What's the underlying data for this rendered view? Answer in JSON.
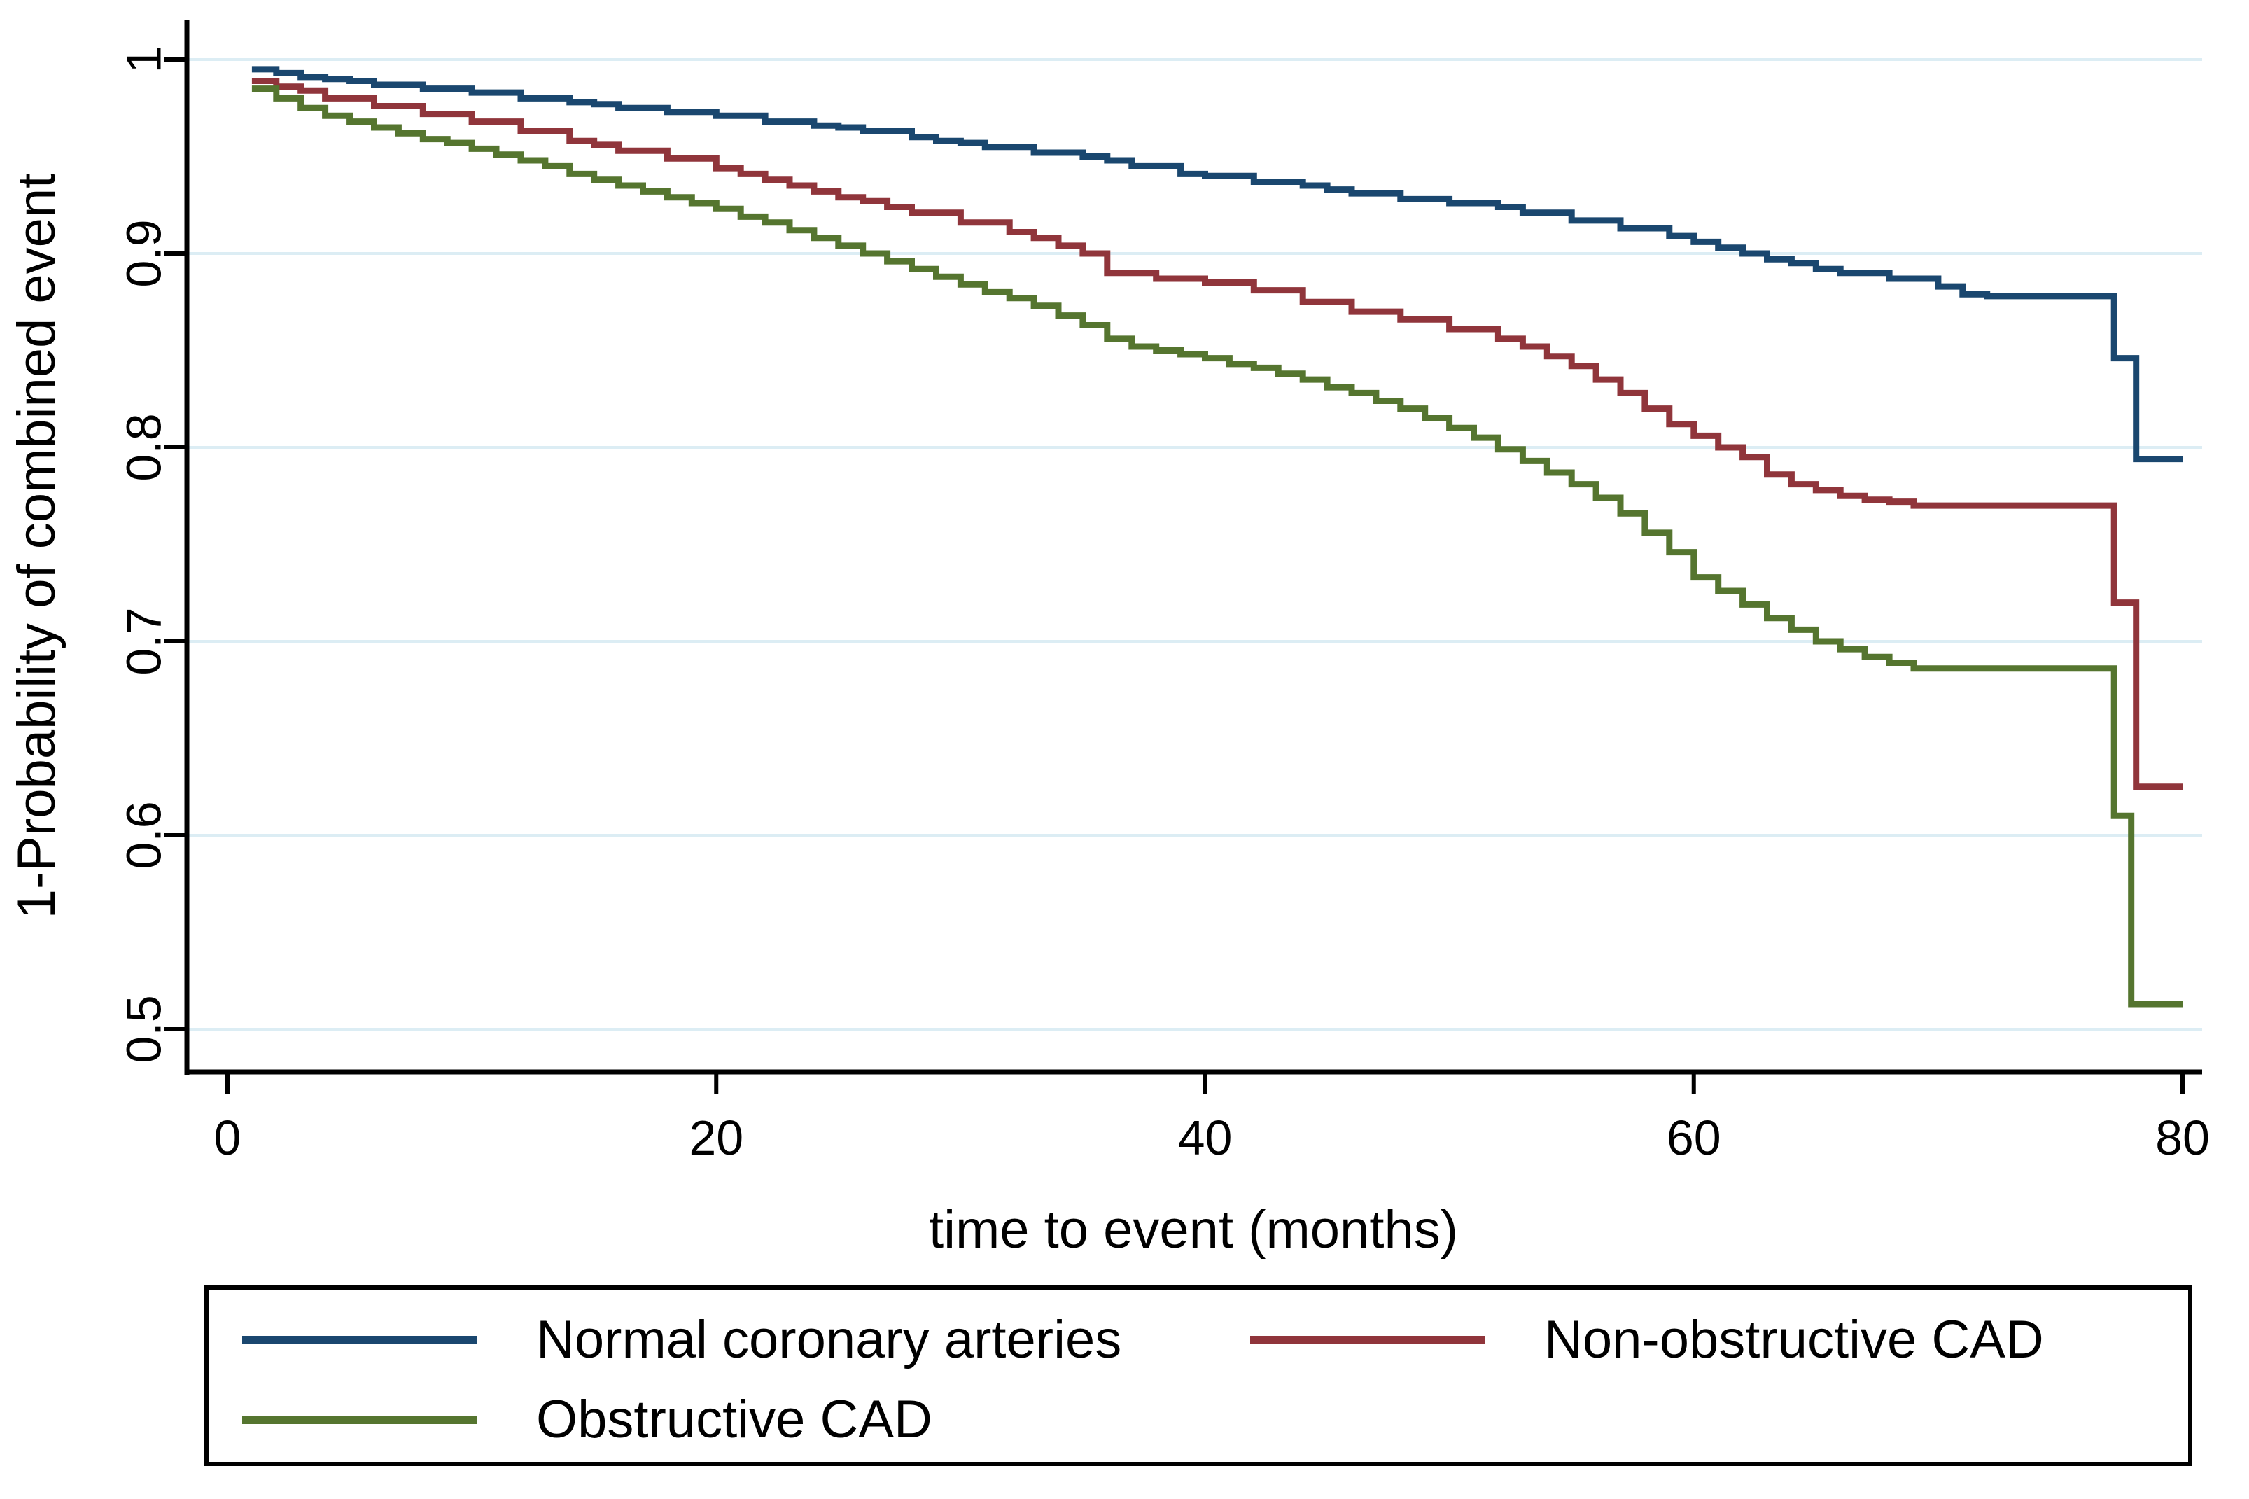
{
  "figure": {
    "background": "#ffffff",
    "grid_color": "#dcedf4",
    "axis_color": "#000000",
    "text_color": "#000000"
  },
  "chart_data": {
    "type": "line",
    "subtype": "kaplan-meier-step",
    "title": "",
    "xlabel": "time to event (months)",
    "ylabel": "1-Probability of combined event",
    "xlim": [
      0,
      80
    ],
    "ylim": [
      0.48,
      1.02
    ],
    "xticks": [
      0,
      20,
      40,
      60,
      80
    ],
    "xtick_labels": [
      "0",
      "20",
      "40",
      "60",
      "80"
    ],
    "yticks": [
      1,
      0.9,
      0.8,
      0.7,
      0.6,
      0.5
    ],
    "ytick_labels": [
      "1",
      "0.9",
      "0.8",
      "0.7",
      "0.6",
      "0.5"
    ],
    "grid": "horizontal-only",
    "legend_position": "bottom-box",
    "series": [
      {
        "name": "Normal coronary arteries",
        "color": "#1a476f",
        "step": true,
        "points": [
          [
            1,
            0.995
          ],
          [
            2,
            0.993
          ],
          [
            3,
            0.991
          ],
          [
            4,
            0.99
          ],
          [
            5,
            0.989
          ],
          [
            6,
            0.987
          ],
          [
            8,
            0.985
          ],
          [
            10,
            0.983
          ],
          [
            12,
            0.98
          ],
          [
            14,
            0.978
          ],
          [
            15,
            0.977
          ],
          [
            16,
            0.975
          ],
          [
            18,
            0.973
          ],
          [
            20,
            0.971
          ],
          [
            22,
            0.968
          ],
          [
            24,
            0.966
          ],
          [
            25,
            0.965
          ],
          [
            26,
            0.963
          ],
          [
            28,
            0.96
          ],
          [
            29,
            0.958
          ],
          [
            30,
            0.957
          ],
          [
            31,
            0.955
          ],
          [
            33,
            0.952
          ],
          [
            35,
            0.95
          ],
          [
            36,
            0.948
          ],
          [
            37,
            0.945
          ],
          [
            39,
            0.941
          ],
          [
            40,
            0.94
          ],
          [
            42,
            0.937
          ],
          [
            44,
            0.935
          ],
          [
            45,
            0.933
          ],
          [
            46,
            0.931
          ],
          [
            48,
            0.928
          ],
          [
            50,
            0.926
          ],
          [
            52,
            0.924
          ],
          [
            53,
            0.921
          ],
          [
            55,
            0.917
          ],
          [
            57,
            0.913
          ],
          [
            59,
            0.909
          ],
          [
            60,
            0.906
          ],
          [
            61,
            0.903
          ],
          [
            62,
            0.9
          ],
          [
            63,
            0.897
          ],
          [
            64,
            0.895
          ],
          [
            65,
            0.892
          ],
          [
            66,
            0.89
          ],
          [
            68,
            0.887
          ],
          [
            70,
            0.883
          ],
          [
            71,
            0.879
          ],
          [
            72,
            0.878
          ],
          [
            77.1,
            0.878
          ],
          [
            77.2,
            0.846
          ],
          [
            78,
            0.846
          ],
          [
            78.1,
            0.794
          ],
          [
            80,
            0.794
          ]
        ]
      },
      {
        "name": "Non-obstructive CAD",
        "color": "#90353b",
        "step": true,
        "points": [
          [
            1,
            0.989
          ],
          [
            2,
            0.986
          ],
          [
            3,
            0.984
          ],
          [
            4,
            0.98
          ],
          [
            6,
            0.976
          ],
          [
            8,
            0.972
          ],
          [
            10,
            0.968
          ],
          [
            12,
            0.963
          ],
          [
            14,
            0.958
          ],
          [
            15,
            0.956
          ],
          [
            16,
            0.953
          ],
          [
            18,
            0.949
          ],
          [
            20,
            0.944
          ],
          [
            21,
            0.941
          ],
          [
            22,
            0.938
          ],
          [
            23,
            0.935
          ],
          [
            24,
            0.932
          ],
          [
            25,
            0.929
          ],
          [
            26,
            0.927
          ],
          [
            27,
            0.924
          ],
          [
            28,
            0.921
          ],
          [
            30,
            0.916
          ],
          [
            32,
            0.911
          ],
          [
            33,
            0.908
          ],
          [
            34,
            0.904
          ],
          [
            35,
            0.9
          ],
          [
            36,
            0.89
          ],
          [
            38,
            0.887
          ],
          [
            40,
            0.885
          ],
          [
            42,
            0.881
          ],
          [
            44,
            0.875
          ],
          [
            46,
            0.87
          ],
          [
            48,
            0.866
          ],
          [
            50,
            0.861
          ],
          [
            52,
            0.856
          ],
          [
            53,
            0.852
          ],
          [
            54,
            0.847
          ],
          [
            55,
            0.842
          ],
          [
            56,
            0.835
          ],
          [
            57,
            0.828
          ],
          [
            58,
            0.82
          ],
          [
            59,
            0.812
          ],
          [
            60,
            0.806
          ],
          [
            61,
            0.8
          ],
          [
            62,
            0.795
          ],
          [
            63,
            0.786
          ],
          [
            64,
            0.781
          ],
          [
            65,
            0.778
          ],
          [
            66,
            0.775
          ],
          [
            67,
            0.773
          ],
          [
            68,
            0.772
          ],
          [
            69,
            0.77
          ],
          [
            77.1,
            0.77
          ],
          [
            77.2,
            0.72
          ],
          [
            78,
            0.72
          ],
          [
            78.1,
            0.625
          ],
          [
            80,
            0.625
          ]
        ]
      },
      {
        "name": "Obstructive CAD",
        "color": "#55752f",
        "step": true,
        "points": [
          [
            1,
            0.985
          ],
          [
            2,
            0.98
          ],
          [
            3,
            0.975
          ],
          [
            4,
            0.971
          ],
          [
            5,
            0.968
          ],
          [
            6,
            0.965
          ],
          [
            7,
            0.962
          ],
          [
            8,
            0.959
          ],
          [
            9,
            0.957
          ],
          [
            10,
            0.954
          ],
          [
            11,
            0.951
          ],
          [
            12,
            0.948
          ],
          [
            13,
            0.945
          ],
          [
            14,
            0.941
          ],
          [
            15,
            0.938
          ],
          [
            16,
            0.935
          ],
          [
            17,
            0.932
          ],
          [
            18,
            0.929
          ],
          [
            19,
            0.926
          ],
          [
            20,
            0.923
          ],
          [
            21,
            0.919
          ],
          [
            22,
            0.916
          ],
          [
            23,
            0.912
          ],
          [
            24,
            0.908
          ],
          [
            25,
            0.904
          ],
          [
            26,
            0.9
          ],
          [
            27,
            0.896
          ],
          [
            28,
            0.892
          ],
          [
            29,
            0.888
          ],
          [
            30,
            0.884
          ],
          [
            31,
            0.88
          ],
          [
            32,
            0.877
          ],
          [
            33,
            0.873
          ],
          [
            34,
            0.868
          ],
          [
            35,
            0.863
          ],
          [
            36,
            0.856
          ],
          [
            37,
            0.852
          ],
          [
            38,
            0.85
          ],
          [
            39,
            0.848
          ],
          [
            40,
            0.846
          ],
          [
            41,
            0.843
          ],
          [
            42,
            0.841
          ],
          [
            43,
            0.838
          ],
          [
            44,
            0.835
          ],
          [
            45,
            0.831
          ],
          [
            46,
            0.828
          ],
          [
            47,
            0.824
          ],
          [
            48,
            0.82
          ],
          [
            49,
            0.815
          ],
          [
            50,
            0.81
          ],
          [
            51,
            0.805
          ],
          [
            52,
            0.799
          ],
          [
            53,
            0.793
          ],
          [
            54,
            0.787
          ],
          [
            55,
            0.781
          ],
          [
            56,
            0.774
          ],
          [
            57,
            0.766
          ],
          [
            58,
            0.756
          ],
          [
            59,
            0.746
          ],
          [
            60,
            0.733
          ],
          [
            61,
            0.726
          ],
          [
            62,
            0.719
          ],
          [
            63,
            0.712
          ],
          [
            64,
            0.706
          ],
          [
            65,
            0.7
          ],
          [
            66,
            0.696
          ],
          [
            67,
            0.692
          ],
          [
            68,
            0.689
          ],
          [
            69,
            0.686
          ],
          [
            77.1,
            0.686
          ],
          [
            77.2,
            0.61
          ],
          [
            77.8,
            0.61
          ],
          [
            77.9,
            0.513
          ],
          [
            80,
            0.513
          ]
        ]
      }
    ],
    "legend": {
      "items": [
        {
          "label": "Normal coronary arteries"
        },
        {
          "label": "Non-obstructive CAD"
        },
        {
          "label": "Obstructive CAD"
        }
      ]
    }
  }
}
